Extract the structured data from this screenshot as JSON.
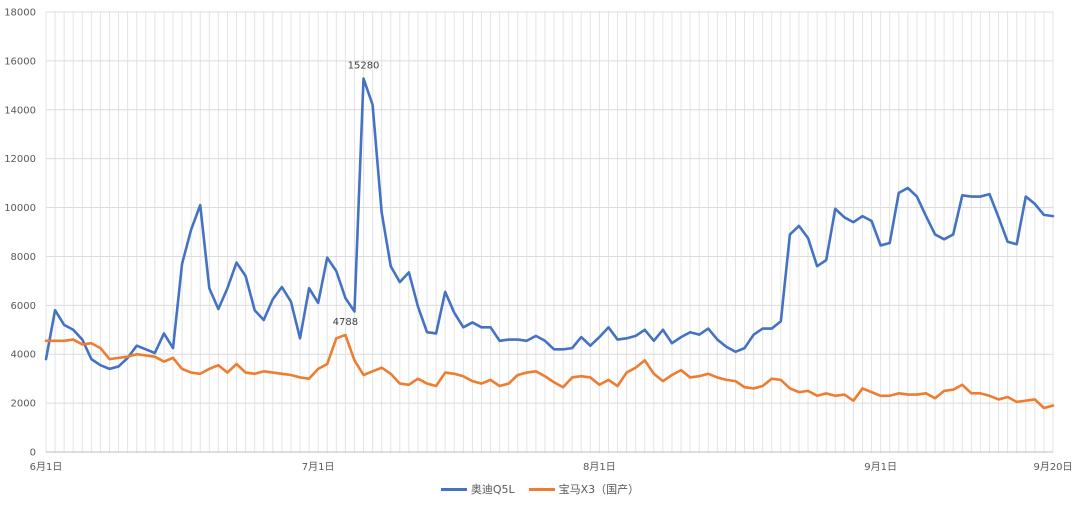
{
  "chart_data": {
    "type": "line",
    "title": "",
    "xlabel": "",
    "ylabel": "",
    "ylim": [
      0,
      18000
    ],
    "yticks": [
      0,
      2000,
      4000,
      6000,
      8000,
      10000,
      12000,
      14000,
      16000,
      18000
    ],
    "grid": true,
    "legend_position": "bottom",
    "x_tick_labels": [
      "6月1日",
      "7月1日",
      "8月1日",
      "9月1日",
      "9月20日"
    ],
    "x": [
      "6月1日",
      "6月2日",
      "6月3日",
      "6月4日",
      "6月5日",
      "6月6日",
      "6月7日",
      "6月8日",
      "6月9日",
      "6月10日",
      "6月11日",
      "6月12日",
      "6月13日",
      "6月14日",
      "6月15日",
      "6月16日",
      "6月17日",
      "6月18日",
      "6月19日",
      "6月20日",
      "6月21日",
      "6月22日",
      "6月23日",
      "6月24日",
      "6月25日",
      "6月26日",
      "6月27日",
      "6月28日",
      "6月29日",
      "6月30日",
      "7月1日",
      "7月2日",
      "7月3日",
      "7月4日",
      "7月5日",
      "7月6日",
      "7月7日",
      "7月8日",
      "7月9日",
      "7月10日",
      "7月11日",
      "7月12日",
      "7月13日",
      "7月14日",
      "7月15日",
      "7月16日",
      "7月17日",
      "7月18日",
      "7月19日",
      "7月20日",
      "7月21日",
      "7月22日",
      "7月23日",
      "7月24日",
      "7月25日",
      "7月26日",
      "7月27日",
      "7月28日",
      "7月29日",
      "7月30日",
      "7月31日",
      "8月1日",
      "8月2日",
      "8月3日",
      "8月4日",
      "8月5日",
      "8月6日",
      "8月7日",
      "8月8日",
      "8月9日",
      "8月10日",
      "8月11日",
      "8月12日",
      "8月13日",
      "8月14日",
      "8月15日",
      "8月16日",
      "8月17日",
      "8月18日",
      "8月19日",
      "8月20日",
      "8月21日",
      "8月22日",
      "8月23日",
      "8月24日",
      "8月25日",
      "8月26日",
      "8月27日",
      "8月28日",
      "8月29日",
      "8月30日",
      "8月31日",
      "9月1日",
      "9月2日",
      "9月3日",
      "9月4日",
      "9月5日",
      "9月6日",
      "9月7日",
      "9月8日",
      "9月9日",
      "9月10日",
      "9月11日",
      "9月12日",
      "9月13日",
      "9月14日",
      "9月15日",
      "9月16日",
      "9月17日",
      "9月18日",
      "9月19日",
      "9月20日"
    ],
    "series": [
      {
        "name": "奥迪Q5L",
        "color": "#4472C4",
        "values": [
          3800,
          5800,
          5200,
          5000,
          4600,
          3800,
          3550,
          3400,
          3500,
          3850,
          4350,
          4200,
          4050,
          4850,
          4250,
          7700,
          9100,
          10100,
          6700,
          5850,
          6700,
          7750,
          7200,
          5800,
          5400,
          6250,
          6750,
          6150,
          4650,
          6700,
          6100,
          7950,
          7400,
          6300,
          5750,
          15280,
          14200,
          9800,
          7600,
          6950,
          7350,
          5950,
          4900,
          4850,
          6550,
          5700,
          5100,
          5300,
          5100,
          5100,
          4550,
          4600,
          4600,
          4550,
          4750,
          4550,
          4200,
          4200,
          4250,
          4700,
          4350,
          4700,
          5100,
          4600,
          4650,
          4750,
          5000,
          4550,
          5000,
          4450,
          4700,
          4900,
          4800,
          5050,
          4600,
          4300,
          4100,
          4250,
          4800,
          5050,
          5050,
          5350,
          8900,
          9250,
          8750,
          7600,
          7850,
          9950,
          9600,
          9400,
          9650,
          9450,
          8450,
          8550,
          10600,
          10800,
          10450,
          9650,
          8900,
          8700,
          8900,
          10500,
          10450,
          10450,
          10550,
          9600,
          8600,
          8500,
          10450,
          10150,
          9700,
          9650
        ],
        "data_labels": [
          {
            "x": "7月6日",
            "text": "15280"
          }
        ]
      },
      {
        "name": "宝马X3（国产）",
        "color": "#ED7D31",
        "values": [
          4550,
          4550,
          4550,
          4600,
          4400,
          4450,
          4250,
          3800,
          3850,
          3900,
          4000,
          3950,
          3900,
          3700,
          3850,
          3400,
          3250,
          3200,
          3400,
          3550,
          3250,
          3600,
          3250,
          3200,
          3300,
          3250,
          3200,
          3150,
          3050,
          3000,
          3400,
          3600,
          4650,
          4788,
          3750,
          3150,
          3300,
          3450,
          3200,
          2800,
          2750,
          3000,
          2800,
          2700,
          3250,
          3200,
          3100,
          2900,
          2800,
          2950,
          2700,
          2800,
          3150,
          3250,
          3300,
          3100,
          2850,
          2650,
          3050,
          3100,
          3050,
          2750,
          2950,
          2700,
          3250,
          3450,
          3750,
          3200,
          2900,
          3150,
          3350,
          3050,
          3100,
          3200,
          3050,
          2950,
          2900,
          2650,
          2600,
          2700,
          3000,
          2950,
          2600,
          2450,
          2500,
          2300,
          2400,
          2300,
          2350,
          2100,
          2600,
          2450,
          2300,
          2300,
          2400,
          2350,
          2350,
          2400,
          2200,
          2500,
          2550,
          2750,
          2400,
          2400,
          2300,
          2150,
          2250,
          2050,
          2100,
          2150,
          1800,
          1900
        ],
        "data_labels": [
          {
            "x": "7月4日",
            "text": "4788"
          }
        ]
      }
    ]
  }
}
